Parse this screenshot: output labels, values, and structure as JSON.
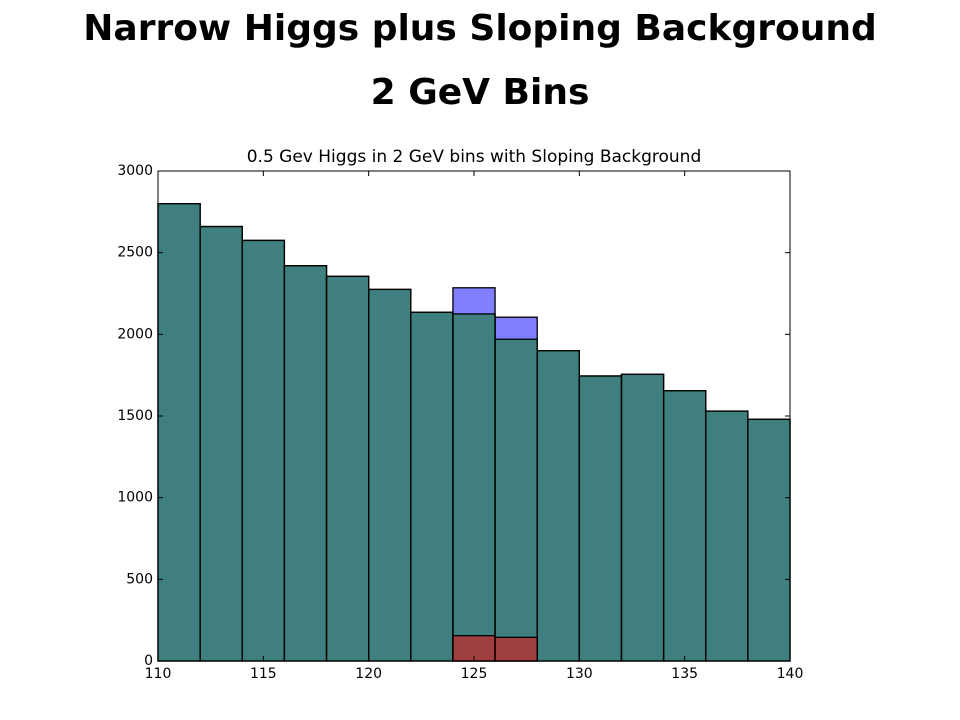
{
  "slide": {
    "title_lines": [
      "Narrow Higgs plus Sloping Background",
      "2 GeV Bins"
    ]
  },
  "chart_data": {
    "type": "histogram",
    "title": "0.5 Gev Higgs in 2 GeV bins with Sloping Background",
    "bins": [
      110,
      112,
      114,
      116,
      118,
      120,
      122,
      124,
      126,
      128,
      130,
      132,
      134,
      136,
      138,
      140
    ],
    "series": [
      {
        "color": "#0000ff",
        "values": [
          2800,
          2660,
          2575,
          2420,
          2355,
          2275,
          2135,
          2285,
          2105,
          1900,
          1745,
          1755,
          1655,
          1530,
          1480
        ]
      },
      {
        "color": "#008000",
        "values": [
          2800,
          2660,
          2575,
          2420,
          2355,
          2275,
          2135,
          2125,
          1970,
          1900,
          1745,
          1755,
          1655,
          1530,
          1480
        ]
      },
      {
        "color": "#ff0000",
        "values": [
          0,
          0,
          0,
          0,
          0,
          0,
          0,
          155,
          145,
          0,
          0,
          0,
          0,
          0,
          0
        ]
      }
    ],
    "alpha": 0.5,
    "xlim": [
      110,
      140
    ],
    "xticks": [
      110,
      115,
      120,
      125,
      130,
      135,
      140
    ],
    "ylim": [
      0,
      3000
    ],
    "yticks": [
      0,
      500,
      1000,
      1500,
      2000,
      2500,
      3000
    ]
  }
}
